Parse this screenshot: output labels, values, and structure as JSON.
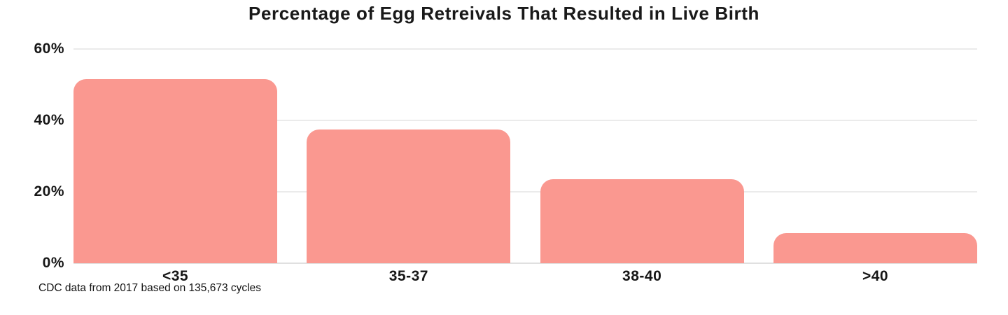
{
  "chart_data": {
    "type": "bar",
    "title": "Percentage of Egg Retreivals That Resulted in Live Birth",
    "categories": [
      "<35",
      "35-37",
      "38-40",
      ">40"
    ],
    "values": [
      51.5,
      37.5,
      23.5,
      8.5
    ],
    "value_unit": "%",
    "xlabel": "",
    "ylabel": "",
    "ylim": [
      0,
      60
    ],
    "yticks": [
      0,
      20,
      40,
      60
    ],
    "ytick_labels": [
      "0%",
      "20%",
      "40%",
      "60%"
    ],
    "grid": "horizontal",
    "legend_position": "none",
    "bar_color": "#FA9890",
    "gridline_color": "#ebebeb",
    "axis_line_color": "#e0e0e0",
    "text_color": "#161616",
    "footnote": "CDC data from 2017 based on 135,673 cycles"
  }
}
